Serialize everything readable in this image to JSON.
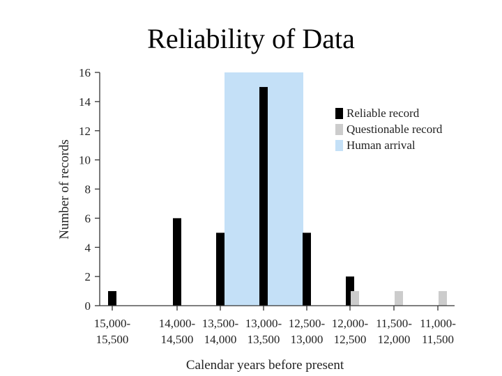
{
  "title": "Reliability of Data",
  "chart_data": {
    "type": "bar",
    "title": "Reliability of Data",
    "xlabel": "Calendar years before present",
    "ylabel": "Number of records",
    "ylim": [
      0,
      16
    ],
    "yticks": [
      0,
      2,
      4,
      6,
      8,
      10,
      12,
      14,
      16
    ],
    "categories": [
      [
        "15,000-",
        "15,500"
      ],
      [
        "14,000-",
        "14,500"
      ],
      [
        "13,500-",
        "14,000"
      ],
      [
        "13,000-",
        "13,500"
      ],
      [
        "12,500-",
        "13,000"
      ],
      [
        "12,000-",
        "12,500"
      ],
      [
        "11,500-",
        "12,000"
      ],
      [
        "11,000-",
        "11,500"
      ]
    ],
    "series": [
      {
        "name": "Reliable record",
        "color": "#000000",
        "values": [
          1,
          6,
          5,
          15,
          5,
          2,
          0,
          0
        ]
      },
      {
        "name": "Questionable record",
        "color": "#cccccc",
        "values": [
          0,
          0,
          0,
          0,
          0,
          1,
          1,
          1
        ]
      }
    ],
    "shaded_region": {
      "name": "Human arrival",
      "color": "#c4e0f7",
      "from_category": 2,
      "to_category": 4
    },
    "legend_position": "top-right",
    "grid": false
  }
}
